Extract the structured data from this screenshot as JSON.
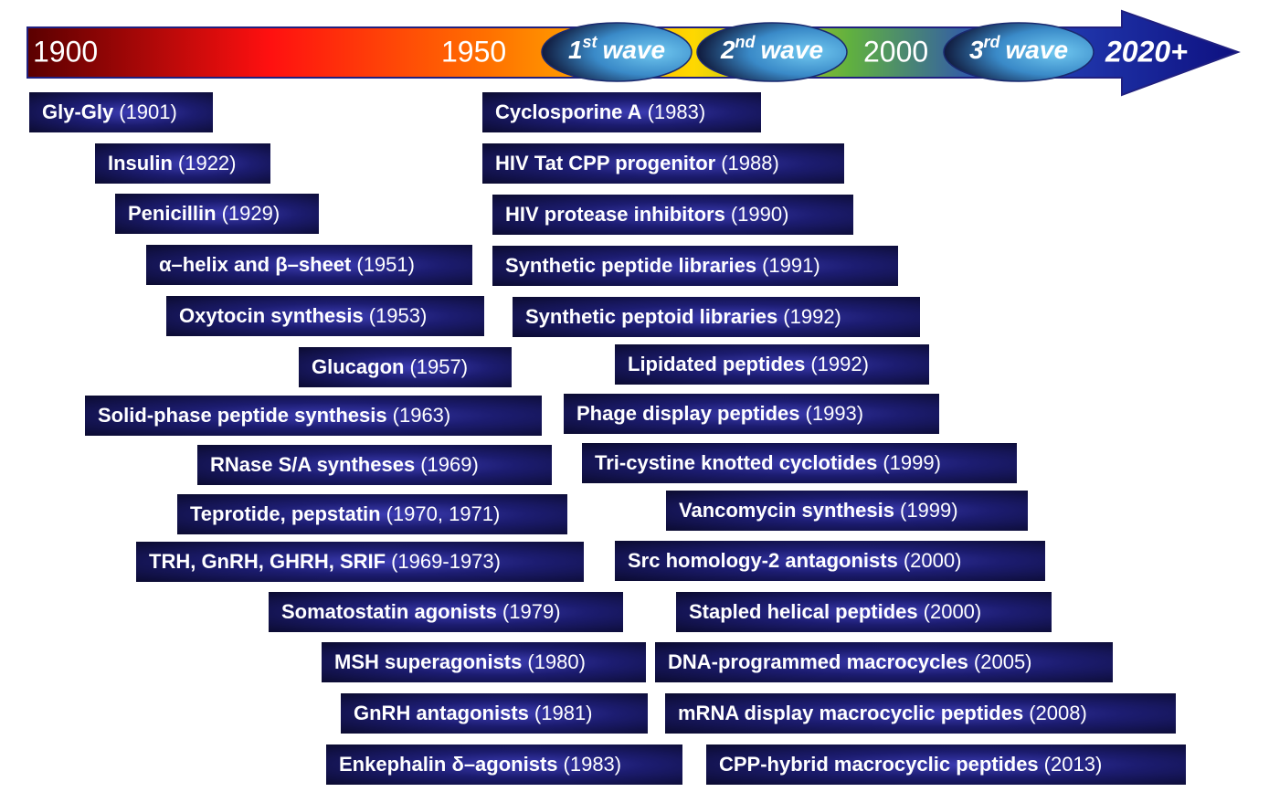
{
  "timeline": {
    "years": [
      "1900",
      "1950",
      "2000",
      "2020+"
    ],
    "waves": [
      {
        "ordinal": "1",
        "sup": "st",
        "word": "wave"
      },
      {
        "ordinal": "2",
        "sup": "nd",
        "word": "wave"
      },
      {
        "ordinal": "3",
        "sup": "rd",
        "word": "wave"
      }
    ]
  },
  "left_items": [
    {
      "name": "Gly-Gly",
      "year": "(1901)"
    },
    {
      "name": "Insulin",
      "year": "(1922)"
    },
    {
      "name": "Penicillin",
      "year": "(1929)"
    },
    {
      "name": "α–helix and β–sheet",
      "year": "(1951)"
    },
    {
      "name": "Oxytocin synthesis",
      "year": "(1953)"
    },
    {
      "name": "Glucagon",
      "year": "(1957)"
    },
    {
      "name": "Solid-phase peptide synthesis",
      "year": "(1963)"
    },
    {
      "name": "RNase S/A syntheses",
      "year": "(1969)"
    },
    {
      "name": "Teprotide, pepstatin",
      "year": "(1970, 1971)"
    },
    {
      "name": "TRH, GnRH, GHRH, SRIF",
      "year": "(1969-1973)"
    },
    {
      "name": "Somatostatin agonists",
      "year": "(1979)"
    },
    {
      "name": "MSH superagonists",
      "year": "(1980)"
    },
    {
      "name": "GnRH antagonists",
      "year": "(1981)"
    },
    {
      "name": "Enkephalin δ–agonists",
      "year": "(1983)"
    }
  ],
  "right_items": [
    {
      "name": "Cyclosporine A",
      "year": "(1983)"
    },
    {
      "name": "HIV Tat CPP progenitor",
      "year": "(1988)"
    },
    {
      "name": "HIV protease inhibitors",
      "year": "(1990)"
    },
    {
      "name": "Synthetic peptide libraries",
      "year": "(1991)"
    },
    {
      "name": "Synthetic peptoid libraries",
      "year": "(1992)"
    },
    {
      "name": "Lipidated peptides",
      "year": "(1992)"
    },
    {
      "name": "Phage display peptides",
      "year": "(1993)"
    },
    {
      "name": "Tri-cystine knotted cyclotides",
      "year": "(1999)"
    },
    {
      "name": "Vancomycin synthesis",
      "year": "(1999)"
    },
    {
      "name": "Src homology-2 antagonists",
      "year": "(2000)"
    },
    {
      "name": "Stapled helical peptides",
      "year": "(2000)"
    },
    {
      "name": "DNA-programmed macrocycles",
      "year": "(2005)"
    },
    {
      "name": "mRNA display macrocyclic peptides",
      "year": "(2008)"
    },
    {
      "name": "CPP-hybrid macrocyclic peptides",
      "year": "(2013)"
    }
  ]
}
